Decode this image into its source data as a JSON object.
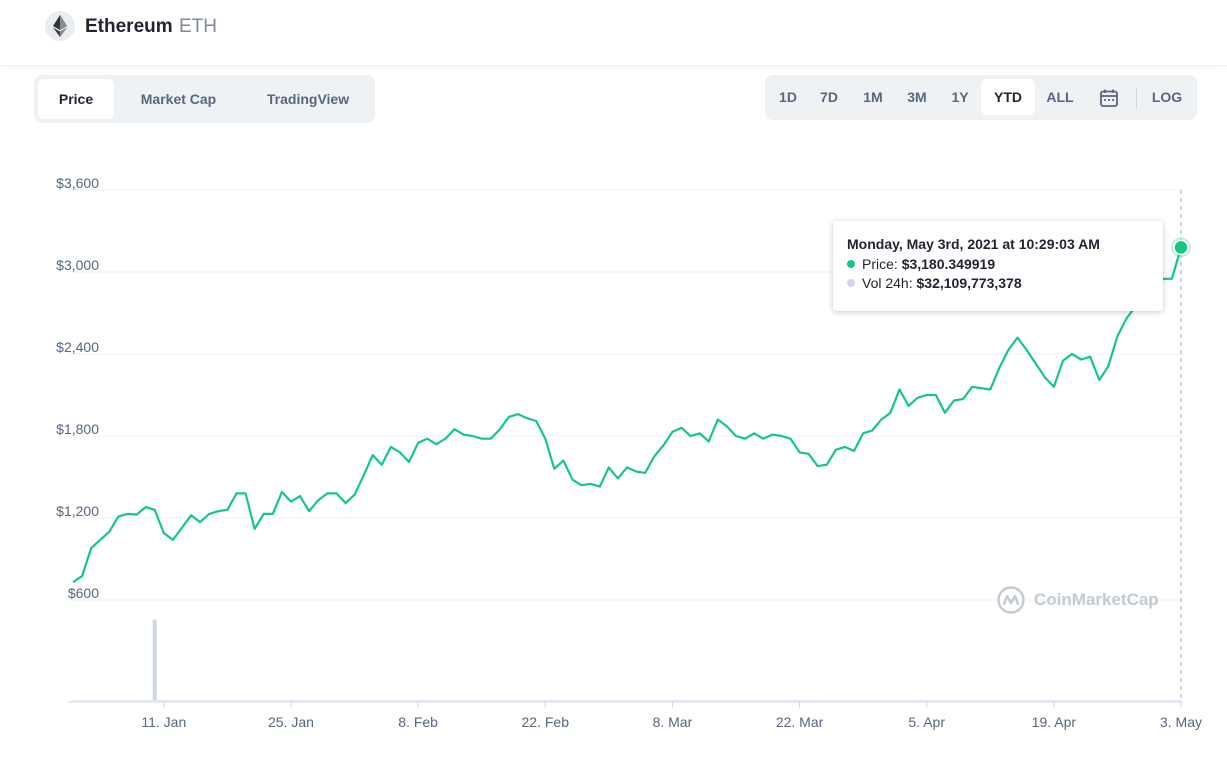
{
  "header": {
    "coin_name": "Ethereum",
    "coin_symbol": "ETH",
    "logo_icon": "ethereum-logo-icon"
  },
  "chart_tabs": [
    "Price",
    "Market Cap",
    "TradingView"
  ],
  "active_chart_tab": "Price",
  "ranges": [
    "1D",
    "7D",
    "1M",
    "3M",
    "1Y",
    "YTD",
    "ALL"
  ],
  "active_range": "YTD",
  "calendar_icon": "calendar-icon",
  "log_label": "LOG",
  "tooltip": {
    "date": "Monday, May 3rd, 2021 at 10:29:03 AM",
    "price_label": "Price:",
    "price_value": "$3,180.349919",
    "volume_label": "Vol 24h:",
    "volume_value": "$32,109,773,378"
  },
  "watermark": "CoinMarketCap",
  "colors": {
    "line": "#16c784",
    "volume": "#cfd6e4",
    "grid": "#eff2f5",
    "axis_text": "#58667e"
  },
  "chart_data": {
    "type": "line",
    "title": "",
    "xlabel": "",
    "ylabel": "",
    "x_ticks": [
      "11. Jan",
      "25. Jan",
      "8. Feb",
      "22. Feb",
      "8. Mar",
      "22. Mar",
      "5. Apr",
      "19. Apr",
      "3. May"
    ],
    "y_ticks": [
      "$600",
      "$1,200",
      "$1,800",
      "$2,400",
      "$3,000",
      "$3,600"
    ],
    "y_tick_values": [
      600,
      1200,
      1800,
      2400,
      3000,
      3600
    ],
    "ylim": [
      0,
      3600
    ],
    "xlim": [
      "2021-01-01",
      "2021-05-03"
    ],
    "grid": true,
    "series": [
      {
        "values": [
          [
            "2021-01-01",
            730
          ],
          [
            "2021-01-02",
            775
          ],
          [
            "2021-01-03",
            980
          ],
          [
            "2021-01-04",
            1040
          ],
          [
            "2021-01-05",
            1100
          ],
          [
            "2021-01-06",
            1210
          ],
          [
            "2021-01-07",
            1230
          ],
          [
            "2021-01-08",
            1225
          ],
          [
            "2021-01-09",
            1280
          ],
          [
            "2021-01-10",
            1260
          ],
          [
            "2021-01-11",
            1090
          ],
          [
            "2021-01-12",
            1040
          ],
          [
            "2021-01-13",
            1130
          ],
          [
            "2021-01-14",
            1220
          ],
          [
            "2021-01-15",
            1170
          ],
          [
            "2021-01-16",
            1230
          ],
          [
            "2021-01-17",
            1250
          ],
          [
            "2021-01-18",
            1260
          ],
          [
            "2021-01-19",
            1380
          ],
          [
            "2021-01-20",
            1380
          ],
          [
            "2021-01-21",
            1120
          ],
          [
            "2021-01-22",
            1230
          ],
          [
            "2021-01-23",
            1230
          ],
          [
            "2021-01-24",
            1390
          ],
          [
            "2021-01-25",
            1320
          ],
          [
            "2021-01-26",
            1360
          ],
          [
            "2021-01-27",
            1250
          ],
          [
            "2021-01-28",
            1330
          ],
          [
            "2021-01-29",
            1380
          ],
          [
            "2021-01-30",
            1380
          ],
          [
            "2021-01-31",
            1310
          ],
          [
            "2021-02-01",
            1370
          ],
          [
            "2021-02-02",
            1510
          ],
          [
            "2021-02-03",
            1660
          ],
          [
            "2021-02-04",
            1590
          ],
          [
            "2021-02-05",
            1720
          ],
          [
            "2021-02-06",
            1680
          ],
          [
            "2021-02-07",
            1610
          ],
          [
            "2021-02-08",
            1750
          ],
          [
            "2021-02-09",
            1780
          ],
          [
            "2021-02-10",
            1740
          ],
          [
            "2021-02-11",
            1780
          ],
          [
            "2021-02-12",
            1850
          ],
          [
            "2021-02-13",
            1810
          ],
          [
            "2021-02-14",
            1800
          ],
          [
            "2021-02-15",
            1780
          ],
          [
            "2021-02-16",
            1780
          ],
          [
            "2021-02-17",
            1850
          ],
          [
            "2021-02-18",
            1940
          ],
          [
            "2021-02-19",
            1960
          ],
          [
            "2021-02-20",
            1930
          ],
          [
            "2021-02-21",
            1910
          ],
          [
            "2021-02-22",
            1780
          ],
          [
            "2021-02-23",
            1560
          ],
          [
            "2021-02-24",
            1620
          ],
          [
            "2021-02-25",
            1480
          ],
          [
            "2021-02-26",
            1440
          ],
          [
            "2021-02-27",
            1450
          ],
          [
            "2021-02-28",
            1430
          ],
          [
            "2021-03-01",
            1570
          ],
          [
            "2021-03-02",
            1490
          ],
          [
            "2021-03-03",
            1570
          ],
          [
            "2021-03-04",
            1540
          ],
          [
            "2021-03-05",
            1530
          ],
          [
            "2021-03-06",
            1650
          ],
          [
            "2021-03-07",
            1730
          ],
          [
            "2021-03-08",
            1830
          ],
          [
            "2021-03-09",
            1860
          ],
          [
            "2021-03-10",
            1800
          ],
          [
            "2021-03-11",
            1820
          ],
          [
            "2021-03-12",
            1760
          ],
          [
            "2021-03-13",
            1920
          ],
          [
            "2021-03-14",
            1870
          ],
          [
            "2021-03-15",
            1800
          ],
          [
            "2021-03-16",
            1780
          ],
          [
            "2021-03-17",
            1820
          ],
          [
            "2021-03-18",
            1780
          ],
          [
            "2021-03-19",
            1810
          ],
          [
            "2021-03-20",
            1800
          ],
          [
            "2021-03-21",
            1780
          ],
          [
            "2021-03-22",
            1680
          ],
          [
            "2021-03-23",
            1670
          ],
          [
            "2021-03-24",
            1580
          ],
          [
            "2021-03-25",
            1590
          ],
          [
            "2021-03-26",
            1700
          ],
          [
            "2021-03-27",
            1720
          ],
          [
            "2021-03-28",
            1690
          ],
          [
            "2021-03-29",
            1820
          ],
          [
            "2021-03-30",
            1840
          ],
          [
            "2021-03-31",
            1920
          ],
          [
            "2021-04-01",
            1970
          ],
          [
            "2021-04-02",
            2140
          ],
          [
            "2021-04-03",
            2020
          ],
          [
            "2021-04-04",
            2080
          ],
          [
            "2021-04-05",
            2100
          ],
          [
            "2021-04-06",
            2100
          ],
          [
            "2021-04-07",
            1970
          ],
          [
            "2021-04-08",
            2060
          ],
          [
            "2021-04-09",
            2070
          ],
          [
            "2021-04-10",
            2160
          ],
          [
            "2021-04-11",
            2150
          ],
          [
            "2021-04-12",
            2140
          ],
          [
            "2021-04-13",
            2300
          ],
          [
            "2021-04-14",
            2430
          ],
          [
            "2021-04-15",
            2520
          ],
          [
            "2021-04-16",
            2430
          ],
          [
            "2021-04-17",
            2330
          ],
          [
            "2021-04-18",
            2230
          ],
          [
            "2021-04-19",
            2160
          ],
          [
            "2021-04-20",
            2350
          ],
          [
            "2021-04-21",
            2400
          ],
          [
            "2021-04-22",
            2360
          ],
          [
            "2021-04-23",
            2380
          ],
          [
            "2021-04-24",
            2210
          ],
          [
            "2021-04-25",
            2310
          ],
          [
            "2021-04-26",
            2530
          ],
          [
            "2021-04-27",
            2660
          ],
          [
            "2021-04-28",
            2750
          ],
          [
            "2021-04-29",
            2760
          ],
          [
            "2021-04-30",
            2770
          ],
          [
            "2021-05-01",
            2950
          ],
          [
            "2021-05-02",
            2950
          ],
          [
            "2021-05-03",
            3180
          ]
        ]
      }
    ],
    "volume_spike": {
      "date": "2021-01-10",
      "share_of_panel": 0.98
    }
  }
}
